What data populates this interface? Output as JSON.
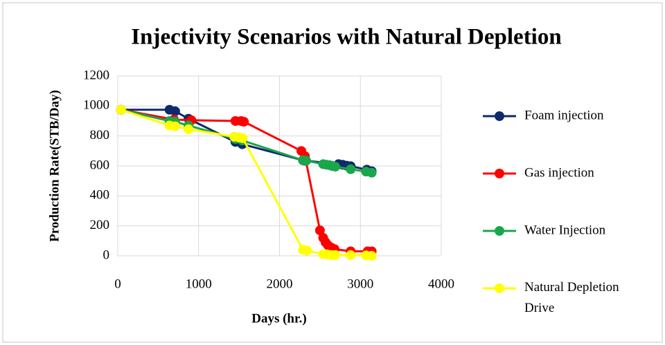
{
  "chart_data": {
    "type": "line",
    "title": "Injectivity Scenarios with Natural Depletion",
    "x_label": "Days (hr.)",
    "y_label": "Production Rate(STB/Day)",
    "xlim": [
      0,
      4000
    ],
    "xticks": [
      0,
      1000,
      2000,
      3000,
      4000
    ],
    "ylim": [
      0,
      1200
    ],
    "yticks": [
      0,
      200,
      400,
      600,
      800,
      1000,
      1200
    ],
    "grid": true,
    "legend": "right",
    "series": [
      {
        "name": "Foam injection",
        "color": "#0d2a6b",
        "x": [
          40,
          640,
          710,
          875,
          1455,
          1540,
          2290,
          2315,
          2730,
          2780,
          2830,
          2880,
          3080,
          3140
        ],
        "values": [
          975,
          975,
          965,
          915,
          760,
          745,
          638,
          635,
          612,
          608,
          602,
          598,
          575,
          565
        ]
      },
      {
        "name": "Gas injection",
        "color": "#ff0000",
        "x": [
          40,
          695,
          910,
          1455,
          1525,
          1560,
          2270,
          2315,
          2500,
          2540,
          2570,
          2600,
          2640,
          2680,
          2880,
          3090,
          3140
        ],
        "values": [
          975,
          910,
          905,
          900,
          900,
          895,
          700,
          665,
          170,
          120,
          90,
          70,
          55,
          45,
          30,
          30,
          30
        ]
      },
      {
        "name": "Water Injection",
        "color": "#1aa64a",
        "x": [
          40,
          640,
          710,
          875,
          1455,
          1540,
          2290,
          2330,
          2540,
          2580,
          2620,
          2650,
          2690,
          2880,
          3070,
          3140
        ],
        "values": [
          975,
          900,
          895,
          870,
          780,
          770,
          638,
          635,
          612,
          608,
          605,
          600,
          595,
          578,
          562,
          555
        ]
      },
      {
        "name": "Natural Depletion Drive",
        "color": "#ffff00",
        "x": [
          40,
          640,
          710,
          875,
          1440,
          1500,
          1545,
          2290,
          2340,
          2540,
          2590,
          2640,
          2690,
          2880,
          3070,
          3140
        ],
        "values": [
          975,
          870,
          865,
          845,
          795,
          790,
          785,
          40,
          35,
          10,
          10,
          5,
          5,
          5,
          3,
          0
        ]
      }
    ]
  }
}
